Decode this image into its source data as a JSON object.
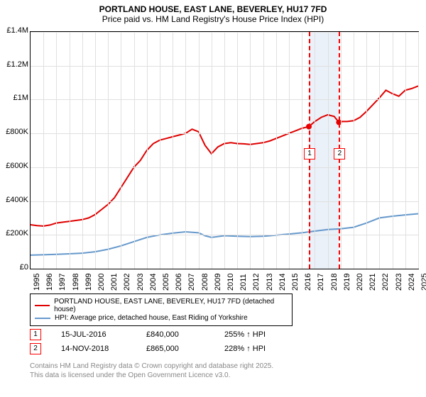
{
  "title": {
    "line1": "PORTLAND HOUSE, EAST LANE, BEVERLEY, HU17 7FD",
    "line2": "Price paid vs. HM Land Registry's House Price Index (HPI)"
  },
  "chart": {
    "type": "line",
    "background_color": "#ffffff",
    "grid_color": "#e0e0e0",
    "axis_color": "#000000",
    "y_axis": {
      "min": 0,
      "max": 1400000,
      "step": 200000,
      "ticks": [
        "£0",
        "£200K",
        "£400K",
        "£600K",
        "£800K",
        "£1M",
        "£1.2M",
        "£1.4M"
      ],
      "label_fontsize": 11
    },
    "x_axis": {
      "min": 1995,
      "max": 2025,
      "ticks": [
        "1995",
        "1996",
        "1997",
        "1998",
        "1999",
        "2000",
        "2001",
        "2002",
        "2003",
        "2004",
        "2005",
        "2006",
        "2007",
        "2008",
        "2009",
        "2010",
        "2011",
        "2012",
        "2013",
        "2014",
        "2015",
        "2016",
        "2017",
        "2018",
        "2019",
        "2020",
        "2021",
        "2022",
        "2023",
        "2024",
        "2025"
      ],
      "label_fontsize": 11
    },
    "series": [
      {
        "name": "price_paid",
        "color": "#e00000",
        "width": 2,
        "legend": "PORTLAND HOUSE, EAST LANE, BEVERLEY, HU17 7FD (detached house)",
        "points": [
          [
            1995,
            260000
          ],
          [
            1995.5,
            255000
          ],
          [
            1996,
            252000
          ],
          [
            1996.5,
            258000
          ],
          [
            1997,
            270000
          ],
          [
            1997.5,
            275000
          ],
          [
            1998,
            280000
          ],
          [
            1998.5,
            285000
          ],
          [
            1999,
            290000
          ],
          [
            1999.5,
            300000
          ],
          [
            2000,
            320000
          ],
          [
            2000.5,
            350000
          ],
          [
            2001,
            380000
          ],
          [
            2001.5,
            420000
          ],
          [
            2002,
            480000
          ],
          [
            2002.5,
            540000
          ],
          [
            2003,
            600000
          ],
          [
            2003.5,
            640000
          ],
          [
            2004,
            700000
          ],
          [
            2004.5,
            740000
          ],
          [
            2005,
            760000
          ],
          [
            2005.5,
            770000
          ],
          [
            2006,
            780000
          ],
          [
            2006.5,
            790000
          ],
          [
            2007,
            800000
          ],
          [
            2007.5,
            825000
          ],
          [
            2008,
            810000
          ],
          [
            2008.5,
            730000
          ],
          [
            2009,
            680000
          ],
          [
            2009.5,
            720000
          ],
          [
            2010,
            740000
          ],
          [
            2010.5,
            745000
          ],
          [
            2011,
            740000
          ],
          [
            2011.5,
            738000
          ],
          [
            2012,
            735000
          ],
          [
            2012.5,
            740000
          ],
          [
            2013,
            745000
          ],
          [
            2013.5,
            755000
          ],
          [
            2014,
            770000
          ],
          [
            2014.5,
            785000
          ],
          [
            2015,
            800000
          ],
          [
            2015.5,
            815000
          ],
          [
            2016,
            830000
          ],
          [
            2016.54,
            840000
          ],
          [
            2017,
            870000
          ],
          [
            2017.5,
            895000
          ],
          [
            2018,
            910000
          ],
          [
            2018.5,
            900000
          ],
          [
            2018.87,
            865000
          ],
          [
            2019,
            870000
          ],
          [
            2019.5,
            870000
          ],
          [
            2020,
            875000
          ],
          [
            2020.5,
            895000
          ],
          [
            2021,
            930000
          ],
          [
            2021.5,
            970000
          ],
          [
            2022,
            1010000
          ],
          [
            2022.5,
            1055000
          ],
          [
            2023,
            1035000
          ],
          [
            2023.5,
            1020000
          ],
          [
            2024,
            1055000
          ],
          [
            2024.5,
            1065000
          ],
          [
            2025,
            1080000
          ]
        ]
      },
      {
        "name": "hpi",
        "color": "#6699cc",
        "width": 2,
        "legend": "HPI: Average price, detached house, East Riding of Yorkshire",
        "points": [
          [
            1995,
            80000
          ],
          [
            1996,
            82000
          ],
          [
            1997,
            85000
          ],
          [
            1998,
            88000
          ],
          [
            1999,
            92000
          ],
          [
            2000,
            100000
          ],
          [
            2001,
            115000
          ],
          [
            2002,
            135000
          ],
          [
            2003,
            160000
          ],
          [
            2004,
            185000
          ],
          [
            2005,
            200000
          ],
          [
            2006,
            210000
          ],
          [
            2007,
            218000
          ],
          [
            2008,
            212000
          ],
          [
            2008.5,
            195000
          ],
          [
            2009,
            185000
          ],
          [
            2010,
            195000
          ],
          [
            2011,
            192000
          ],
          [
            2012,
            190000
          ],
          [
            2013,
            192000
          ],
          [
            2014,
            198000
          ],
          [
            2015,
            205000
          ],
          [
            2016,
            212000
          ],
          [
            2017,
            222000
          ],
          [
            2018,
            232000
          ],
          [
            2019,
            236000
          ],
          [
            2020,
            245000
          ],
          [
            2021,
            270000
          ],
          [
            2022,
            300000
          ],
          [
            2023,
            310000
          ],
          [
            2024,
            318000
          ],
          [
            2025,
            325000
          ]
        ]
      }
    ],
    "events": [
      {
        "n": "1",
        "year": 2016.54,
        "value": 840000
      },
      {
        "n": "2",
        "year": 2018.87,
        "value": 865000
      }
    ],
    "band_color": "#eaf1f8",
    "event_edge_color": "#ff0000",
    "marker_color": "#e00000"
  },
  "sales": [
    {
      "n": "1",
      "date": "15-JUL-2016",
      "price": "£840,000",
      "pct": "255% ↑ HPI"
    },
    {
      "n": "2",
      "date": "14-NOV-2018",
      "price": "£865,000",
      "pct": "228% ↑ HPI"
    }
  ],
  "footer": {
    "line1": "Contains HM Land Registry data © Crown copyright and database right 2025.",
    "line2": "This data is licensed under the Open Government Licence v3.0."
  }
}
